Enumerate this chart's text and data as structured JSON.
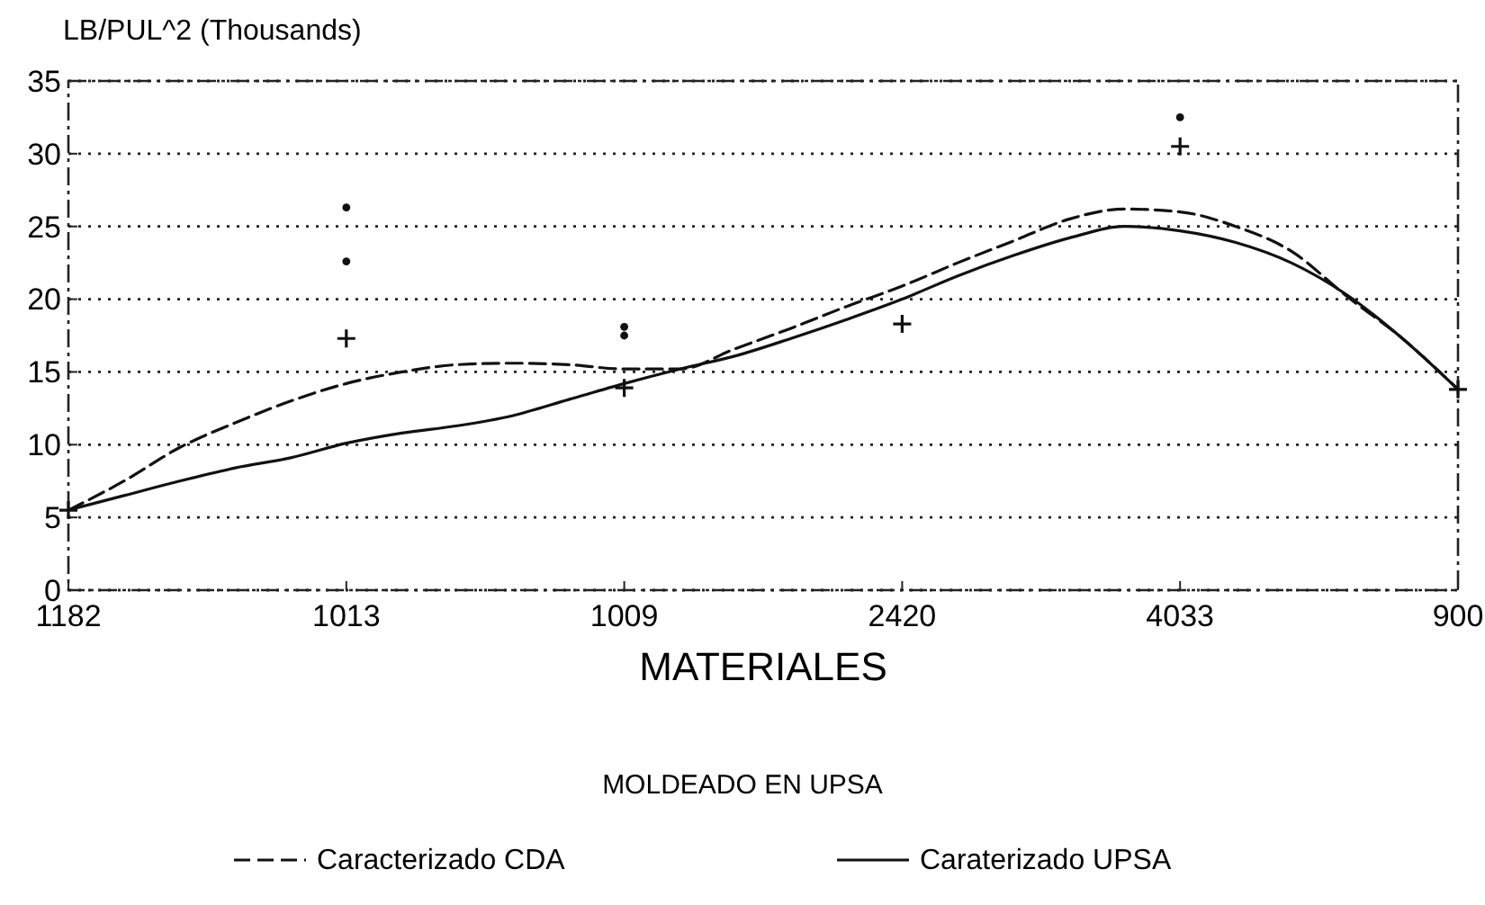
{
  "chart_data": {
    "type": "line",
    "title": "MOLDEADO EN UPSA",
    "xlabel": "MATERIALES",
    "ylabel": "LB/PUL^2 (Thousands)",
    "categories": [
      "1182",
      null,
      null,
      null,
      null,
      "1013",
      null,
      null,
      null,
      null,
      "1009",
      null,
      null,
      null,
      null,
      "2420",
      null,
      null,
      null,
      null,
      "4033",
      null,
      null,
      null,
      null,
      "900"
    ],
    "ylim": [
      0,
      35
    ],
    "yticks": [
      0,
      5,
      10,
      15,
      20,
      25,
      30,
      35
    ],
    "grid": "y",
    "legend": "bottom",
    "series": [
      {
        "name": "Caracterizado CDA",
        "line_style": "dashed",
        "color": "#111111",
        "values": [
          5.5,
          7.5,
          9.8,
          11.5,
          13,
          14.2,
          15,
          15.5,
          15.6,
          15.5,
          15.2,
          15.2,
          16.6,
          18,
          19.5,
          20.9,
          22.5,
          24,
          25.5,
          26.2,
          26,
          25,
          23.3,
          20.2,
          17.3,
          13.8
        ]
      },
      {
        "name": "Caraterizado UPSA",
        "line_style": "solid",
        "color": "#111111",
        "values": [
          5.5,
          6.5,
          7.5,
          8.4,
          9.1,
          10.1,
          10.8,
          11.3,
          12,
          13.1,
          14.2,
          15.2,
          16.1,
          17.3,
          18.6,
          20,
          21.6,
          23,
          24.2,
          25,
          24.7,
          23.9,
          22.5,
          20.3,
          17.3,
          13.8
        ]
      },
      {
        "type": "scatter",
        "marker": "cross",
        "color": "#111111",
        "values": [
          5.5,
          null,
          null,
          null,
          null,
          17.3,
          null,
          null,
          null,
          null,
          13.9,
          null,
          null,
          null,
          null,
          18.3,
          null,
          null,
          null,
          null,
          30.5,
          null,
          null,
          null,
          null,
          13.8
        ]
      },
      {
        "type": "scatter",
        "marker": "circle",
        "color": "#111111",
        "values": [
          null,
          null,
          null,
          null,
          null,
          26.3,
          null,
          null,
          null,
          null,
          18.1,
          null,
          null,
          null,
          null,
          null,
          null,
          null,
          null,
          null,
          32.5,
          null,
          null,
          null,
          null,
          null
        ]
      },
      {
        "type": "scatter",
        "marker": "circle",
        "color": "#111111",
        "values": [
          null,
          null,
          null,
          null,
          null,
          22.6,
          null,
          null,
          null,
          null,
          17.5,
          null,
          null,
          null,
          null,
          null,
          null,
          null,
          null,
          null,
          null,
          null,
          null,
          null,
          null,
          null
        ]
      }
    ]
  }
}
